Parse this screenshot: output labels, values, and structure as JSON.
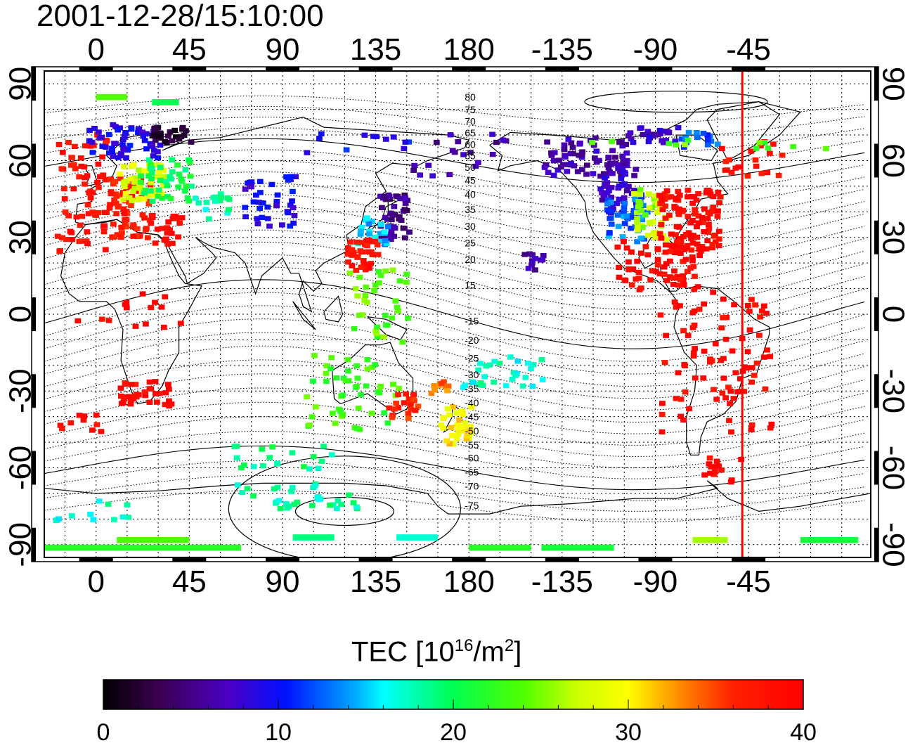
{
  "timestamp": "2001-12-28/15:10:00",
  "map": {
    "lon_range": [
      -25,
      374
    ],
    "lat_range": [
      -95,
      95
    ],
    "top_ticks": [
      "0",
      "45",
      "90",
      "135",
      "180",
      "-135",
      "-90",
      "-45"
    ],
    "bottom_ticks": [
      "0",
      "45",
      "90",
      "135",
      "180",
      "-135",
      "-90",
      "-45"
    ],
    "left_ticks": [
      "90",
      "60",
      "30",
      "0",
      "-30",
      "-60",
      "-90"
    ],
    "right_ticks": [
      "90",
      "60",
      "30",
      "0",
      "-30",
      "-60",
      "-90"
    ],
    "tick_lon_values": [
      0,
      45,
      90,
      135,
      180,
      225,
      270,
      315
    ],
    "tick_lat_values": [
      90,
      60,
      30,
      0,
      -30,
      -60,
      -90
    ],
    "grid_lon_step": 15,
    "grid_lat_step": 10,
    "terminator_lon": 312,
    "terminator_color": "#ff0000",
    "mlat_labels": [
      {
        "text": "80",
        "lat": 83.5
      },
      {
        "text": "75",
        "lat": 78.5
      },
      {
        "text": "70",
        "lat": 74
      },
      {
        "text": "65",
        "lat": 69.5
      },
      {
        "text": "60",
        "lat": 65
      },
      {
        "text": "55",
        "lat": 60.5
      },
      {
        "text": "50",
        "lat": 56
      },
      {
        "text": "45",
        "lat": 51
      },
      {
        "text": "40",
        "lat": 45.5
      },
      {
        "text": "35",
        "lat": 39.5
      },
      {
        "text": "30",
        "lat": 33
      },
      {
        "text": "25",
        "lat": 26.5
      },
      {
        "text": "20",
        "lat": 20
      },
      {
        "text": "15",
        "lat": 10
      },
      {
        "text": "-15",
        "lat": -4
      },
      {
        "text": "-20",
        "lat": -11.5
      },
      {
        "text": "-25",
        "lat": -18.5
      },
      {
        "text": "-30",
        "lat": -25
      },
      {
        "text": "-35",
        "lat": -30.5
      },
      {
        "text": "-40",
        "lat": -36
      },
      {
        "text": "-45",
        "lat": -41.5
      },
      {
        "text": "-50",
        "lat": -47
      },
      {
        "text": "-55",
        "lat": -52.5
      },
      {
        "text": "-60",
        "lat": -57.5
      },
      {
        "text": "-65",
        "lat": -63
      },
      {
        "text": "-70",
        "lat": -68.5
      },
      {
        "text": "-75",
        "lat": -76
      }
    ],
    "tec_regions": [
      {
        "lon0": -20,
        "lon1": 5,
        "lat0": 25,
        "lat1": 72,
        "value": 38,
        "n": 70
      },
      {
        "lon0": 5,
        "lon1": 25,
        "lat0": 30,
        "lat1": 55,
        "value": 37,
        "n": 70
      },
      {
        "lon0": 10,
        "lon1": 32,
        "lat0": 45,
        "lat1": 60,
        "value": 28,
        "n": 50
      },
      {
        "lon0": 20,
        "lon1": 45,
        "lat0": 45,
        "lat1": 62,
        "value": 20,
        "n": 40
      },
      {
        "lon0": -5,
        "lon1": 30,
        "lat0": 62,
        "lat1": 76,
        "value": 9,
        "n": 60
      },
      {
        "lon0": 25,
        "lon1": 45,
        "lat0": 68,
        "lat1": 74,
        "value": 2,
        "n": 25
      },
      {
        "lon0": 25,
        "lon1": 42,
        "lat0": 28,
        "lat1": 40,
        "value": 39,
        "n": 25
      },
      {
        "lon0": 70,
        "lon1": 95,
        "lat0": 35,
        "lat1": 55,
        "value": 9,
        "n": 40
      },
      {
        "lon0": 45,
        "lon1": 65,
        "lat0": 38,
        "lat1": 48,
        "value": 18,
        "n": 15
      },
      {
        "lon0": 135,
        "lon1": 150,
        "lat0": 30,
        "lat1": 48,
        "value": 5,
        "n": 45
      },
      {
        "lon0": 125,
        "lon1": 140,
        "lat0": 28,
        "lat1": 40,
        "value": 15,
        "n": 25
      },
      {
        "lon0": 120,
        "lon1": 135,
        "lat0": 18,
        "lat1": 30,
        "value": 38,
        "n": 35
      },
      {
        "lon0": 120,
        "lon1": 150,
        "lat0": -10,
        "lat1": 20,
        "value": 24,
        "n": 35
      },
      {
        "lon0": 100,
        "lon1": 145,
        "lat0": -45,
        "lat1": -15,
        "value": 23,
        "n": 50
      },
      {
        "lon0": 140,
        "lon1": 155,
        "lat0": -42,
        "lat1": -30,
        "value": 36,
        "n": 20
      },
      {
        "lon0": 165,
        "lon1": 180,
        "lat0": -50,
        "lat1": -35,
        "value": 30,
        "n": 35
      },
      {
        "lon0": 160,
        "lon1": 170,
        "lat0": -30,
        "lat1": -25,
        "value": 34,
        "n": 10
      },
      {
        "lon0": 175,
        "lon1": 215,
        "lat0": -28,
        "lat1": -15,
        "value": 17,
        "n": 30
      },
      {
        "lon0": 10,
        "lon1": 35,
        "lat0": -35,
        "lat1": -25,
        "value": 39,
        "n": 35
      },
      {
        "lon0": -15,
        "lon1": 40,
        "lat0": -5,
        "lat1": 10,
        "value": 39,
        "n": 15
      },
      {
        "lon0": 205,
        "lon1": 215,
        "lat0": 18,
        "lat1": 25,
        "value": 6,
        "n": 12
      },
      {
        "lon0": 215,
        "lon1": 255,
        "lat0": 55,
        "lat1": 70,
        "value": 6,
        "n": 70
      },
      {
        "lon0": 240,
        "lon1": 260,
        "lat0": 40,
        "lat1": 60,
        "value": 7,
        "n": 50
      },
      {
        "lon0": 245,
        "lon1": 265,
        "lat0": 28,
        "lat1": 48,
        "value": 13,
        "n": 45
      },
      {
        "lon0": 258,
        "lon1": 275,
        "lat0": 30,
        "lat1": 50,
        "value": 26,
        "n": 45
      },
      {
        "lon0": 270,
        "lon1": 300,
        "lat0": 25,
        "lat1": 50,
        "value": 39,
        "n": 110
      },
      {
        "lon0": 250,
        "lon1": 290,
        "lat0": 10,
        "lat1": 30,
        "value": 39,
        "n": 70
      },
      {
        "lon0": 270,
        "lon1": 325,
        "lat0": -45,
        "lat1": 10,
        "value": 39,
        "n": 90
      },
      {
        "lon0": 255,
        "lon1": 280,
        "lat0": 68,
        "lat1": 74,
        "value": 7,
        "n": 25
      },
      {
        "lon0": 280,
        "lon1": 300,
        "lat0": 66,
        "lat1": 72,
        "value": 12,
        "n": 15
      },
      {
        "lon0": 300,
        "lon1": 330,
        "lat0": 55,
        "lat1": 70,
        "value": 38,
        "n": 20
      },
      {
        "lon0": 220,
        "lon1": 370,
        "lat0": 65,
        "lat1": 70,
        "value": 24,
        "n": 12
      },
      {
        "lon0": 290,
        "lon1": 310,
        "lat0": -65,
        "lat1": -55,
        "value": 39,
        "n": 15
      },
      {
        "lon0": 60,
        "lon1": 120,
        "lat0": -60,
        "lat1": -48,
        "value": 19,
        "n": 20
      },
      {
        "lon0": 60,
        "lon1": 130,
        "lat0": -75,
        "lat1": -65,
        "value": 18,
        "n": 35
      },
      {
        "lon0": -25,
        "lon1": 15,
        "lat0": -80,
        "lat1": -72,
        "value": 17,
        "n": 12
      },
      {
        "lon0": -20,
        "lon1": 5,
        "lat0": -45,
        "lat1": -38,
        "value": 39,
        "n": 10
      },
      {
        "lon0": 150,
        "lon1": 200,
        "lat0": 55,
        "lat1": 72,
        "value": 6,
        "n": 20
      },
      {
        "lon0": 100,
        "lon1": 150,
        "lat0": 62,
        "lat1": 72,
        "value": 10,
        "n": 12
      }
    ],
    "tec_bands": [
      {
        "lon0": -25,
        "lon1": 70,
        "lat": -90,
        "value": 22
      },
      {
        "lon0": 10,
        "lon1": 45,
        "lat": -87,
        "value": 24
      },
      {
        "lon0": 95,
        "lon1": 115,
        "lat": -86,
        "value": 19
      },
      {
        "lon0": 145,
        "lon1": 165,
        "lat": -86,
        "value": 17
      },
      {
        "lon0": 180,
        "lon1": 210,
        "lat": -90,
        "value": 22
      },
      {
        "lon0": 215,
        "lon1": 250,
        "lat": -90,
        "value": 21
      },
      {
        "lon0": 288,
        "lon1": 305,
        "lat": -87,
        "value": 26
      },
      {
        "lon0": 340,
        "lon1": 368,
        "lat": -87,
        "value": 21
      },
      {
        "lon0": 0,
        "lon1": 15,
        "lat": 86,
        "value": 24
      },
      {
        "lon0": 27,
        "lon1": 40,
        "lat": 84,
        "value": 20
      }
    ]
  },
  "colorbar": {
    "title_prefix": "TEC  [10",
    "title_exp": "16",
    "title_mid": "/m",
    "title_sq": "2",
    "title_suffix": "]",
    "min": 0,
    "max": 40,
    "labels": [
      "0",
      "10",
      "20",
      "30",
      "40"
    ],
    "label_values": [
      0,
      10,
      20,
      30,
      40
    ]
  }
}
